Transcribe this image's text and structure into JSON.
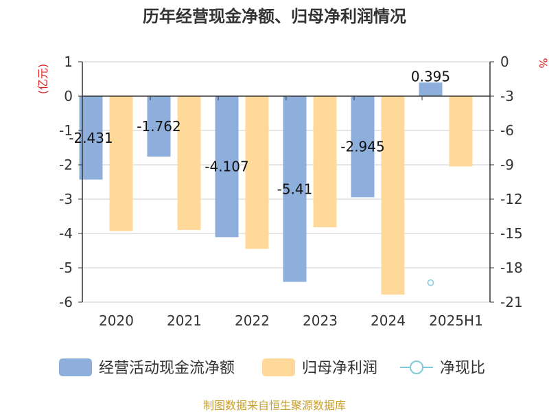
{
  "colors": {
    "cashflow": "#8eaedb",
    "profit": "#fed99a",
    "ratio": "#7ecbd8",
    "axis_unit": "#e02020",
    "source": "#c8a030",
    "grid": "#cccccc",
    "axis": "#333333"
  },
  "chart_data": {
    "type": "bar",
    "title": "历年经营现金净额、归母净利润情况",
    "categories": [
      "2020",
      "2021",
      "2022",
      "2023",
      "2024",
      "2025H1"
    ],
    "y_left": {
      "unit": "(亿元)",
      "ylim": [
        -6,
        1
      ],
      "ticks": [
        "1",
        "0",
        "-1",
        "-2",
        "-3",
        "-4",
        "-5",
        "-6"
      ]
    },
    "y_right": {
      "unit": "%",
      "ylim": [
        -21,
        0
      ],
      "ticks": [
        "0",
        "-3",
        "-6",
        "-9",
        "-12",
        "-15",
        "-18",
        "-21"
      ]
    },
    "series": [
      {
        "name": "经营活动现金流净额",
        "axis": "left",
        "values": [
          -2.431,
          -1.762,
          -4.107,
          -5.41,
          -2.945,
          0.395
        ],
        "labels": [
          "-2.431",
          "-1.762",
          "-4.107",
          "-5.41",
          "-2.945",
          "0.395"
        ]
      },
      {
        "name": "归母净利润",
        "axis": "left",
        "values": [
          -3.93,
          -3.9,
          -4.45,
          -3.82,
          -5.78,
          -2.05
        ]
      },
      {
        "name": "净现比",
        "axis": "right",
        "type": "line",
        "values": [
          null,
          null,
          null,
          null,
          null,
          -19.3
        ]
      }
    ],
    "grid": true,
    "legend": "bottom"
  },
  "source_text": "制图数据来自恒生聚源数据库"
}
